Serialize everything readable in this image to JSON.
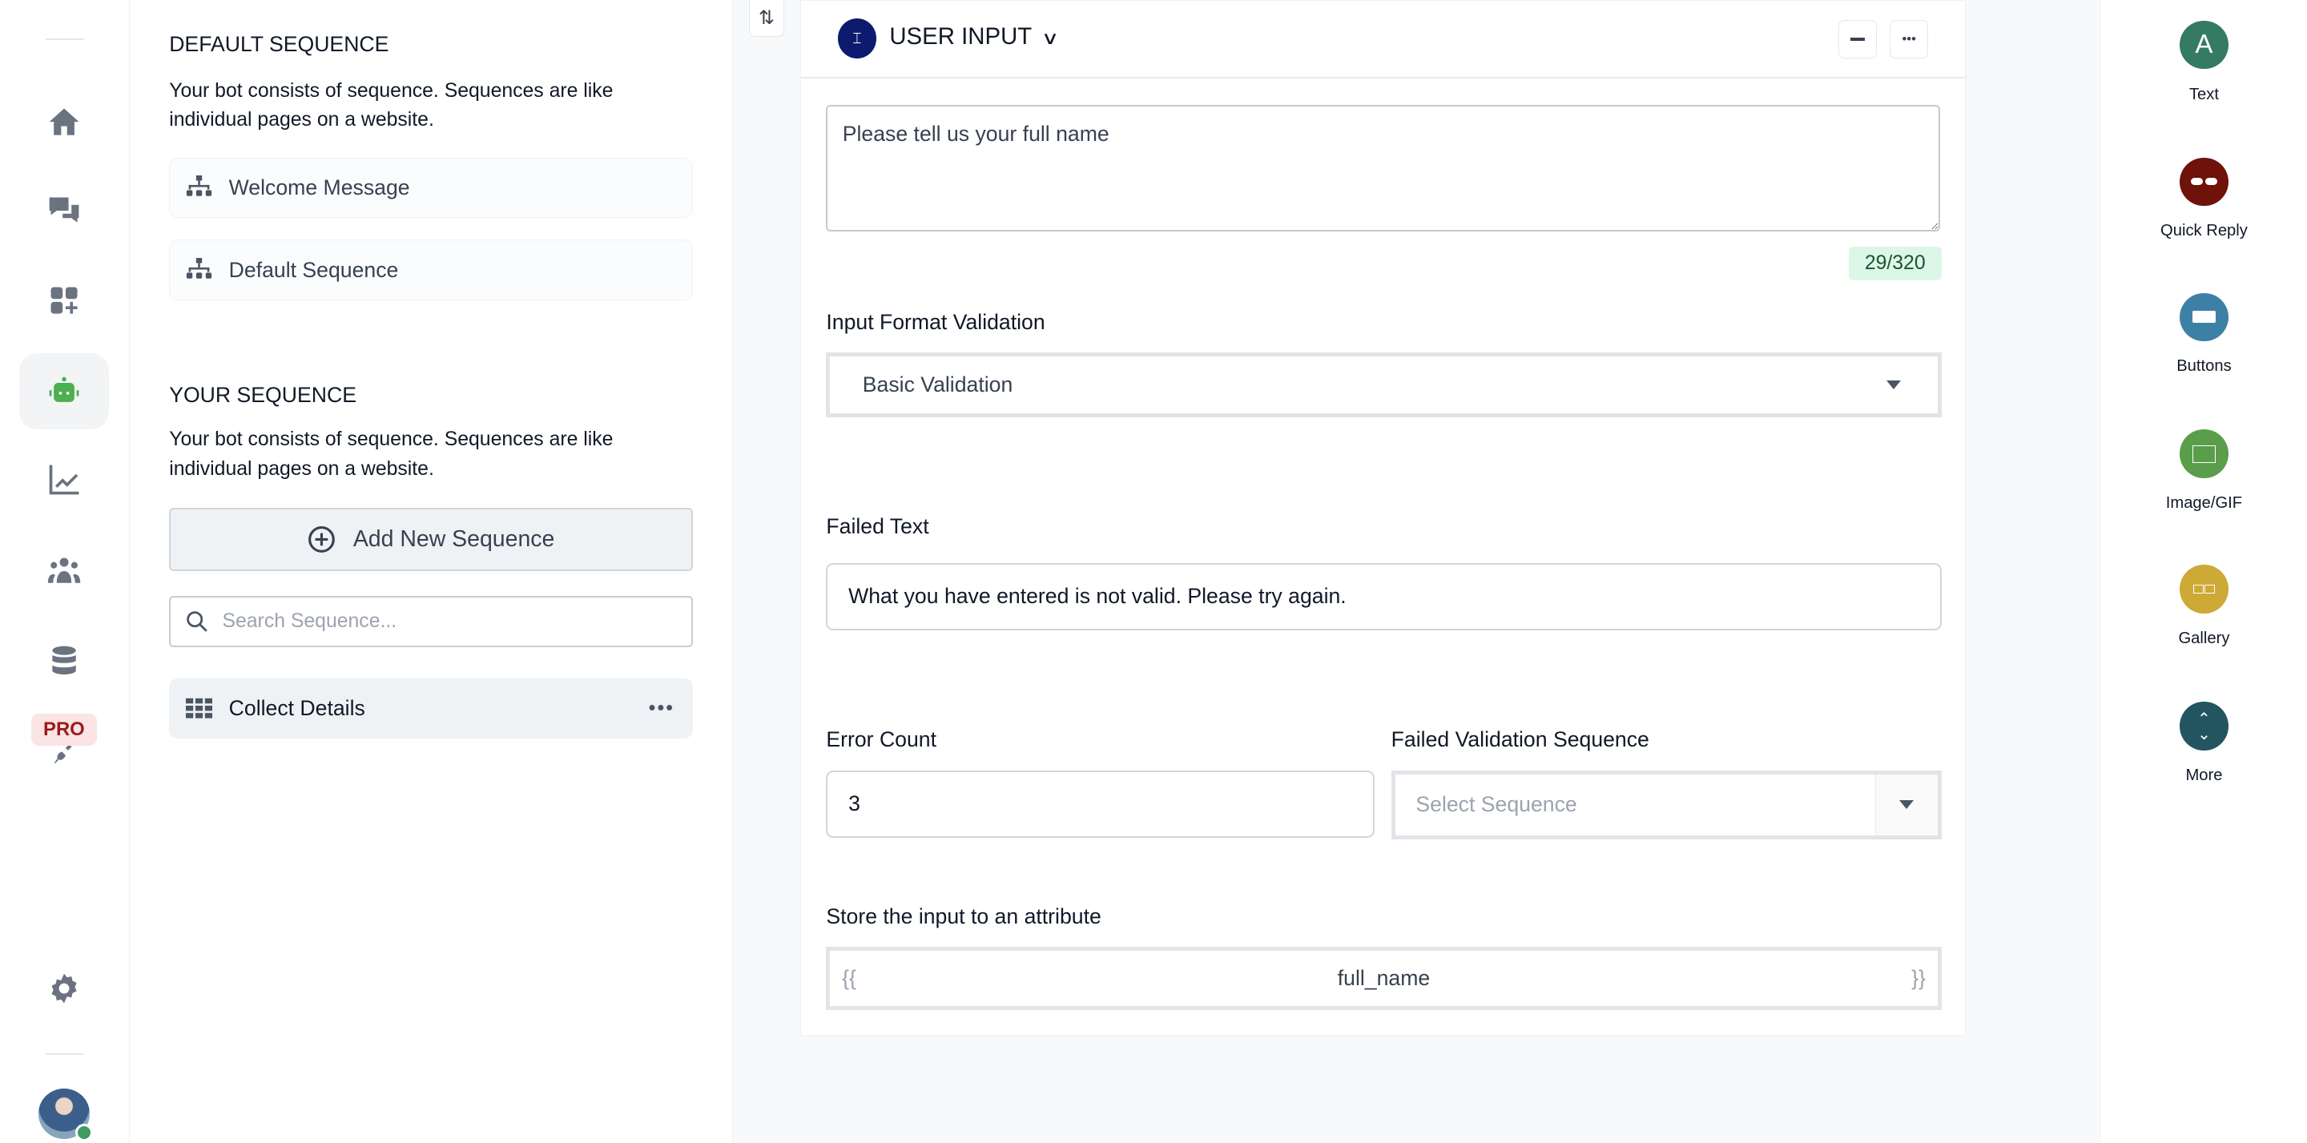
{
  "nav": {
    "items": [
      {
        "icon": "home-icon"
      },
      {
        "icon": "chat-icon"
      },
      {
        "icon": "apps-add-icon"
      },
      {
        "icon": "bot-icon",
        "active": true
      },
      {
        "icon": "analytics-icon"
      },
      {
        "icon": "audience-icon"
      },
      {
        "icon": "database-icon"
      },
      {
        "icon": "integration-plug-icon"
      }
    ],
    "pro_badge": "PRO",
    "settings": "gear-icon",
    "accent": "#4caf50"
  },
  "sequences": {
    "default_title": "DEFAULT SEQUENCE",
    "default_desc": "Your bot consists of sequence. Sequences are like individual pages on a website.",
    "default_items": [
      "Welcome Message",
      "Default Sequence"
    ],
    "your_title": "YOUR SEQUENCE",
    "your_desc": "Your bot consists of sequence. Sequences are like individual pages on a website.",
    "add_label": "Add New Sequence",
    "search_placeholder": "Search Sequence...",
    "items": [
      "Collect Details"
    ]
  },
  "card": {
    "title": "USER INPUT",
    "message": "Please tell us your full name",
    "char_count": "29/320",
    "validation_label": "Input Format Validation",
    "validation_value": "Basic Validation",
    "failed_text_label": "Failed Text",
    "failed_text": "What you have entered is not valid. Please try again.",
    "error_count_label": "Error Count",
    "error_count": "3",
    "failed_seq_label": "Failed Validation Sequence",
    "failed_seq_placeholder": "Select Sequence",
    "attribute_label": "Store the input to an attribute",
    "attr_open": "{{",
    "attribute": "full_name",
    "attr_close": "}}"
  },
  "tools": [
    {
      "label": "Text",
      "color": "#357a63",
      "icon": "text-icon"
    },
    {
      "label": "Quick Reply",
      "color": "#6e120a",
      "icon": "quick-reply-icon"
    },
    {
      "label": "Buttons",
      "color": "#3d80a6",
      "icon": "buttons-icon"
    },
    {
      "label": "Image/GIF",
      "color": "#5a9e4b",
      "icon": "image-icon"
    },
    {
      "label": "Gallery",
      "color": "#cda935",
      "icon": "gallery-icon"
    },
    {
      "label": "More",
      "color": "#22555f",
      "icon": "more-chevrons-icon"
    }
  ]
}
